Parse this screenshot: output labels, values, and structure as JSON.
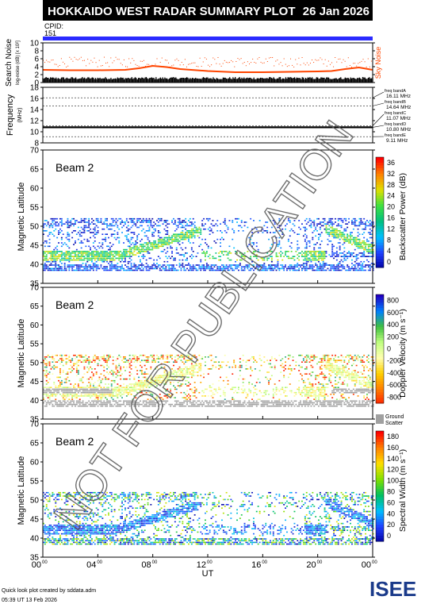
{
  "header": {
    "title": "HOKKAIDO WEST RADAR SUMMARY PLOT",
    "date": "26 Jan 2026",
    "cpid_label": "CPID:",
    "cpid_value": "151"
  },
  "colors": {
    "title_bg": "#000000",
    "cpid_bar": "#2a2aff",
    "sky_noise": "#ff4500",
    "ground_scatter": "#a0a0a0"
  },
  "footer": {
    "line1": "Quick look plot created by sddata.adm",
    "line2": "05:39 UT 13 Feb 2026",
    "logo_text": "ISEE"
  },
  "watermark": "NOT FOR PUBLICATION",
  "chart_data": [
    {
      "type": "line",
      "panel": "noise",
      "ylabel": "Search Noise",
      "ylabel_sub": "log-noise (dB) [x 10²]",
      "right_label": "Sky Noise",
      "yticks": [
        "10",
        "8",
        "6",
        "4",
        "2",
        "0"
      ],
      "ylim": [
        0,
        10
      ],
      "series": [
        {
          "name": "Sky Noise",
          "x": [
            0,
            2,
            4,
            6,
            7,
            8,
            9,
            10,
            12,
            14,
            16,
            18,
            20,
            21,
            22,
            23,
            24
          ],
          "values": [
            3.2,
            3.1,
            3.1,
            3.2,
            3.6,
            4.2,
            3.9,
            3.4,
            2.9,
            2.6,
            2.6,
            2.7,
            2.8,
            2.9,
            3.4,
            3.8,
            3.2
          ]
        }
      ]
    },
    {
      "type": "line",
      "panel": "frequency",
      "ylabel": "Frequency",
      "ylabel_sub": "(MHz)",
      "yticks": [
        "18",
        "16",
        "14",
        "12",
        "10",
        "8"
      ],
      "ylim": [
        8,
        18
      ],
      "bands": [
        {
          "name": "freq bandA",
          "freq": "16.11 MHz",
          "value": 16.11
        },
        {
          "name": "freq bandB",
          "freq": "14.64 MHz",
          "value": 14.64
        },
        {
          "name": "freq bandC",
          "freq": "11.07 MHz",
          "value": 11.07
        },
        {
          "name": "freq bandD",
          "freq": "10.80 MHz",
          "value": 10.8
        },
        {
          "name": "freq bandE",
          "freq": "9.11 MHz",
          "value": 9.11
        }
      ],
      "operating_frequency": 10.8
    },
    {
      "type": "heatmap",
      "panel": "power",
      "beam_label": "Beam  2",
      "ylabel": "Magnetic Latitude",
      "yticks": [
        "70",
        "65",
        "60",
        "55",
        "50",
        "45",
        "40",
        "35"
      ],
      "ylim": [
        35,
        70
      ],
      "colorbar_label": "Backscatter Power (dB)",
      "colorbar_ticks": [
        "36",
        "32",
        "28",
        "24",
        "20",
        "16",
        "12",
        "8",
        "4",
        "0"
      ]
    },
    {
      "type": "heatmap",
      "panel": "velocity",
      "beam_label": "Beam  2",
      "ylabel": "Magnetic Latitude",
      "yticks": [
        "70",
        "65",
        "60",
        "55",
        "50",
        "45",
        "40",
        "35"
      ],
      "ylim": [
        35,
        70
      ],
      "colorbar_label": "Doppler Velocity (m s⁻¹)",
      "colorbar_ticks": [
        "800",
        "600",
        "400",
        "200",
        "0",
        "-200",
        "-400",
        "-600",
        "-800"
      ],
      "ground_scatter_label": "Ground",
      "ground_scatter_label2": "Scatter"
    },
    {
      "type": "heatmap",
      "panel": "width",
      "beam_label": "Beam  2",
      "ylabel": "Magnetic Latitude",
      "yticks": [
        "70",
        "65",
        "60",
        "55",
        "50",
        "45",
        "40",
        "35"
      ],
      "ylim": [
        35,
        70
      ],
      "colorbar_label": "Spectral Width (m s⁻¹)",
      "colorbar_ticks": [
        "180",
        "160",
        "140",
        "120",
        "100",
        "80",
        "60",
        "40",
        "20",
        "0"
      ],
      "xlabel": "UT",
      "xticks": [
        "00",
        "04",
        "08",
        "12",
        "16",
        "20",
        "00"
      ],
      "xtick_sup": "00",
      "xlim": [
        0,
        24
      ]
    }
  ]
}
